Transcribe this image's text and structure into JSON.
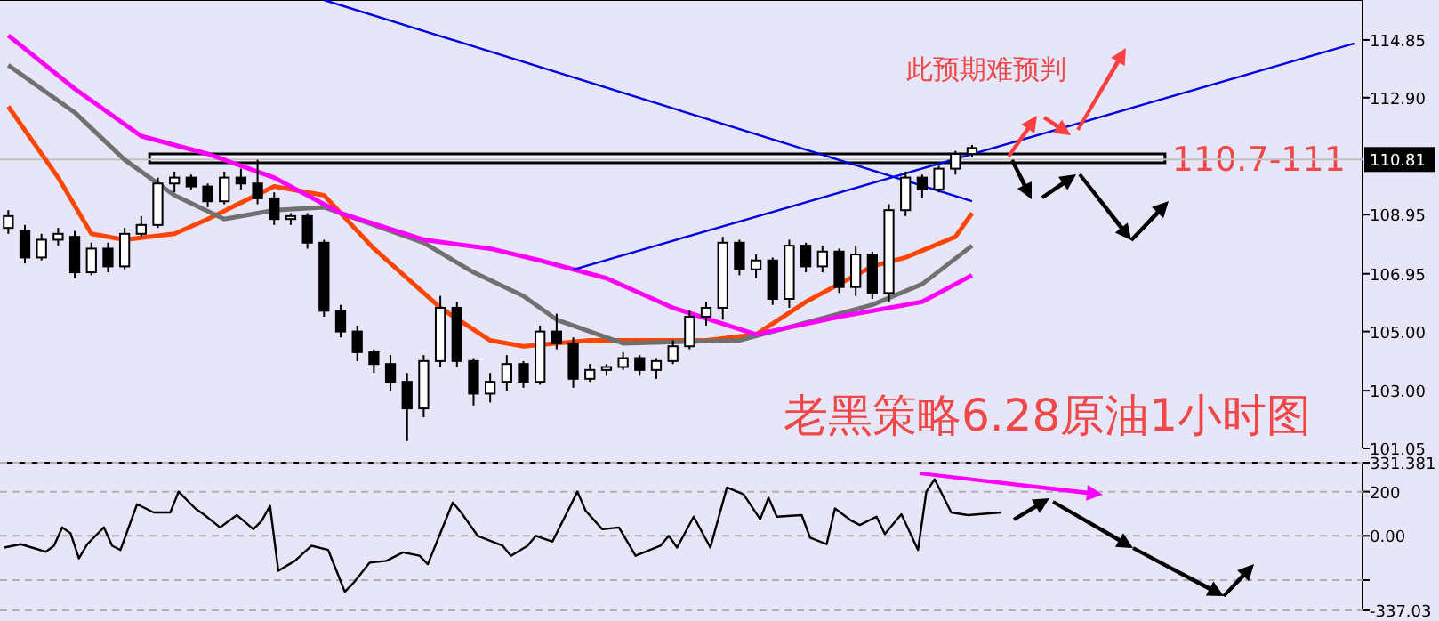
{
  "chart_data": [
    {
      "type": "candlestick",
      "tick_labels": "y",
      "grid": false,
      "categories": [
        null,
        null,
        null,
        null,
        null,
        null,
        null,
        null,
        null,
        null,
        null,
        null,
        null,
        null,
        null,
        null,
        null,
        null,
        null,
        null,
        null,
        null,
        null,
        null,
        null,
        null,
        null,
        null,
        null,
        null,
        null,
        null,
        null,
        null,
        null,
        null,
        null,
        null,
        null,
        null,
        null,
        null,
        null,
        null,
        null,
        null,
        null,
        null,
        null,
        null,
        null,
        null,
        null,
        null,
        null,
        null,
        null,
        null,
        null,
        null,
        null,
        null,
        null,
        null,
        null,
        null,
        null,
        null,
        null,
        null,
        null,
        null,
        null,
        null,
        null,
        null,
        null,
        null,
        null,
        null,
        null,
        null
      ],
      "ohlc": [
        [
          108.5,
          109.1,
          108.3,
          108.9
        ],
        [
          108.4,
          108.6,
          107.3,
          107.5
        ],
        [
          107.5,
          108.3,
          107.4,
          108.1
        ],
        [
          108.1,
          108.5,
          107.9,
          108.3
        ],
        [
          108.2,
          108.4,
          106.8,
          107.0
        ],
        [
          107.0,
          108.0,
          106.9,
          107.8
        ],
        [
          107.8,
          108.0,
          107.0,
          107.2
        ],
        [
          107.2,
          108.5,
          107.1,
          108.3
        ],
        [
          108.3,
          108.9,
          108.2,
          108.6
        ],
        [
          108.6,
          110.2,
          108.5,
          110.0
        ],
        [
          110.0,
          110.4,
          109.7,
          110.2
        ],
        [
          110.2,
          110.3,
          109.8,
          109.9
        ],
        [
          109.9,
          110.0,
          109.2,
          109.4
        ],
        [
          109.4,
          110.4,
          109.3,
          110.2
        ],
        [
          110.2,
          110.5,
          109.8,
          110.0
        ],
        [
          110.0,
          110.8,
          109.3,
          109.5
        ],
        [
          109.5,
          109.7,
          108.6,
          108.8
        ],
        [
          108.8,
          109.0,
          108.6,
          108.9
        ],
        [
          108.9,
          109.0,
          107.8,
          108.0
        ],
        [
          108.0,
          108.1,
          105.5,
          105.7
        ],
        [
          105.7,
          105.9,
          104.8,
          105.0
        ],
        [
          105.0,
          105.2,
          104.0,
          104.3
        ],
        [
          104.3,
          104.4,
          103.6,
          103.9
        ],
        [
          103.9,
          104.2,
          103.0,
          103.3
        ],
        [
          103.3,
          103.6,
          101.3,
          102.4
        ],
        [
          102.4,
          104.2,
          102.1,
          104.0
        ],
        [
          104.0,
          106.2,
          103.8,
          105.8
        ],
        [
          105.8,
          106.0,
          103.8,
          104.0
        ],
        [
          104.0,
          104.1,
          102.5,
          102.9
        ],
        [
          102.9,
          103.6,
          102.6,
          103.3
        ],
        [
          103.3,
          104.2,
          103.0,
          103.9
        ],
        [
          103.9,
          104.0,
          103.1,
          103.3
        ],
        [
          103.3,
          105.2,
          103.2,
          105.0
        ],
        [
          105.0,
          105.6,
          104.4,
          104.6
        ],
        [
          104.6,
          104.8,
          103.1,
          103.4
        ],
        [
          103.4,
          103.9,
          103.3,
          103.7
        ],
        [
          103.7,
          103.9,
          103.5,
          103.8
        ],
        [
          103.8,
          104.3,
          103.7,
          104.1
        ],
        [
          104.1,
          104.2,
          103.5,
          103.7
        ],
        [
          103.7,
          104.1,
          103.4,
          104.0
        ],
        [
          104.0,
          104.7,
          103.9,
          104.5
        ],
        [
          104.5,
          105.7,
          104.4,
          105.5
        ],
        [
          105.5,
          106.0,
          105.2,
          105.8
        ],
        [
          105.8,
          108.2,
          105.4,
          108.0
        ],
        [
          108.0,
          108.1,
          106.9,
          107.1
        ],
        [
          107.1,
          107.6,
          106.8,
          107.4
        ],
        [
          107.4,
          107.5,
          105.9,
          106.1
        ],
        [
          106.1,
          108.1,
          105.8,
          107.9
        ],
        [
          107.9,
          108.0,
          107.0,
          107.2
        ],
        [
          107.2,
          107.9,
          107.0,
          107.7
        ],
        [
          107.7,
          107.8,
          106.3,
          106.5
        ],
        [
          106.5,
          107.9,
          106.2,
          107.6
        ],
        [
          107.6,
          107.7,
          106.1,
          106.3
        ],
        [
          106.3,
          109.3,
          106.0,
          109.1
        ],
        [
          109.1,
          110.4,
          108.9,
          110.2
        ],
        [
          110.2,
          110.3,
          109.5,
          109.8
        ],
        [
          109.8,
          110.6,
          109.7,
          110.5
        ],
        [
          110.5,
          111.1,
          110.3,
          111.0
        ],
        [
          111.0,
          111.3,
          110.9,
          111.2
        ],
        null,
        null,
        null,
        null,
        null,
        null,
        null,
        null,
        null,
        null,
        null,
        null,
        null,
        null,
        null,
        null,
        null,
        null,
        null,
        null,
        null,
        null,
        null
      ],
      "series": [
        {
          "type": "line",
          "color": "#ff4500",
          "values": [
            112.6,
            null,
            null,
            110.2,
            null,
            108.3,
            null,
            108.1,
            null,
            null,
            108.3,
            null,
            108.8,
            null,
            null,
            null,
            109.9,
            null,
            null,
            109.6,
            null,
            null,
            107.8,
            null,
            null,
            null,
            105.8,
            null,
            null,
            104.7,
            null,
            104.5,
            null,
            null,
            null,
            104.7,
            null,
            null,
            null,
            null,
            null,
            null,
            104.7,
            null,
            null,
            104.9,
            null,
            null,
            106.0,
            null,
            null,
            null,
            107.2,
            null,
            107.5,
            null,
            null,
            108.2,
            109.0,
            null,
            null,
            null,
            null,
            null,
            null,
            null,
            null,
            null,
            null,
            null,
            null,
            null,
            null,
            null,
            null,
            null,
            null,
            null,
            null,
            null,
            null,
            null
          ]
        },
        {
          "type": "line",
          "color": "#707070",
          "values": [
            114.0,
            null,
            null,
            null,
            112.4,
            null,
            null,
            110.8,
            null,
            null,
            109.6,
            null,
            null,
            108.8,
            null,
            null,
            109.1,
            null,
            null,
            109.2,
            null,
            null,
            108.6,
            null,
            null,
            108.0,
            null,
            null,
            107.0,
            null,
            null,
            106.2,
            null,
            105.4,
            null,
            null,
            null,
            104.6,
            null,
            null,
            null,
            null,
            null,
            null,
            104.7,
            null,
            null,
            null,
            105.3,
            null,
            null,
            null,
            105.9,
            null,
            null,
            106.6,
            null,
            null,
            107.9,
            null,
            null,
            null,
            null,
            null,
            null,
            null,
            null,
            null,
            null,
            null,
            null,
            null,
            null,
            null,
            null,
            null,
            null,
            null,
            null,
            null,
            null,
            null
          ]
        },
        {
          "type": "line",
          "color": "#ff00ff",
          "values": [
            115.0,
            null,
            null,
            null,
            113.2,
            null,
            null,
            null,
            111.6,
            null,
            null,
            null,
            111.0,
            null,
            null,
            null,
            110.2,
            null,
            null,
            null,
            109.0,
            null,
            null,
            null,
            null,
            108.1,
            null,
            null,
            null,
            107.8,
            null,
            null,
            107.4,
            null,
            null,
            null,
            106.8,
            null,
            null,
            null,
            105.8,
            null,
            null,
            null,
            null,
            104.9,
            null,
            null,
            null,
            null,
            105.5,
            null,
            null,
            null,
            null,
            106.0,
            null,
            null,
            106.9,
            null,
            null,
            null,
            null,
            null,
            null,
            null,
            null,
            null,
            null,
            null,
            null,
            null,
            null,
            null,
            null,
            null,
            null,
            null,
            null,
            null,
            null,
            null
          ]
        },
        {
          "type": "line",
          "color": "#0000e0",
          "values": [
            null,
            null,
            null,
            null,
            null,
            null,
            null,
            null,
            null,
            null,
            null,
            null,
            null,
            null,
            null,
            null,
            null,
            null,
            null,
            116.2,
            null,
            null,
            null,
            null,
            null,
            null,
            null,
            null,
            null,
            null,
            null,
            null,
            null,
            null,
            null,
            null,
            null,
            null,
            null,
            null,
            null,
            null,
            null,
            null,
            null,
            null,
            null,
            null,
            null,
            null,
            null,
            null,
            null,
            null,
            null,
            null,
            null,
            null,
            109.4,
            null,
            null,
            null,
            null,
            null,
            null,
            null,
            null,
            null,
            null,
            null,
            null,
            null,
            null,
            null,
            null,
            null,
            null,
            null,
            null,
            null,
            null,
            null
          ]
        },
        {
          "type": "line",
          "color": "#0000e0",
          "values": [
            null,
            null,
            null,
            null,
            null,
            null,
            null,
            null,
            null,
            null,
            null,
            null,
            null,
            null,
            null,
            null,
            null,
            null,
            null,
            null,
            null,
            null,
            null,
            null,
            null,
            null,
            null,
            null,
            null,
            null,
            null,
            null,
            null,
            null,
            107.09,
            null,
            null,
            null,
            null,
            null,
            null,
            null,
            null,
            null,
            null,
            null,
            null,
            null,
            null,
            null,
            null,
            null,
            null,
            null,
            null,
            null,
            null,
            null,
            null,
            null,
            null,
            null,
            null,
            null,
            null,
            null,
            null,
            null,
            null,
            null,
            null,
            null,
            null,
            null,
            null,
            null,
            null,
            null,
            null,
            null,
            null,
            114.73
          ]
        }
      ],
      "ylim": [
        101.05,
        116.2
      ],
      "yticks": [
        {
          "value": 114.85,
          "label": "114.85"
        },
        {
          "value": 112.9,
          "label": "112.90"
        },
        {
          "value": 108.95,
          "label": "108.95"
        },
        {
          "value": 106.95,
          "label": "106.95"
        },
        {
          "value": 105.0,
          "label": "105.00"
        },
        {
          "value": 103.0,
          "label": "103.00"
        },
        {
          "value": 101.05,
          "label": "101.05"
        }
      ],
      "ref_lines": [
        {
          "axis": "y",
          "value": 110.81,
          "label": "110.81",
          "color": "#c0c0c0"
        }
      ],
      "bands": [
        {
          "axis": "y",
          "from": 110.7,
          "to": 111,
          "label": "110.7-111",
          "color": "#f4f4fc"
        }
      ],
      "annotations": [
        "此预期难预判",
        "老黑策略6.28原油1小时图"
      ]
    },
    {
      "type": "line",
      "tick_labels": "y",
      "grid": "y",
      "categories": [
        null,
        null,
        null,
        null,
        null,
        null,
        null,
        null,
        null,
        null,
        null,
        null,
        null,
        null,
        null,
        null,
        null,
        null,
        null,
        null,
        null,
        null,
        null,
        null,
        null,
        null,
        null,
        null,
        null,
        null,
        null,
        null,
        null,
        null,
        null,
        null,
        null,
        null,
        null,
        null,
        null,
        null,
        null,
        null,
        null,
        null,
        null,
        null,
        null,
        null,
        null,
        null,
        null,
        null,
        null,
        null,
        null,
        null,
        null,
        null,
        null,
        null,
        null,
        null,
        null,
        null,
        null,
        null,
        null,
        null,
        null,
        null,
        null,
        null,
        null,
        null,
        null,
        null,
        null,
        null,
        null,
        null,
        null,
        null,
        null,
        null,
        null,
        null,
        null,
        null,
        null,
        null,
        null,
        null,
        null,
        null,
        null,
        null,
        null,
        null,
        null,
        null,
        null,
        null,
        null,
        null,
        null,
        null,
        null,
        null,
        null,
        null,
        null,
        null,
        null,
        null,
        null,
        null,
        null,
        null,
        null,
        null,
        null,
        null,
        null,
        null,
        null,
        null,
        null,
        null,
        null,
        null,
        null,
        null,
        null,
        null,
        null,
        null,
        null,
        null,
        null,
        null,
        null,
        null,
        null,
        null,
        null,
        null,
        null,
        null,
        null,
        null,
        null,
        null,
        null,
        null,
        null,
        null,
        null,
        null,
        null,
        null,
        null,
        null
      ],
      "series": [
        {
          "color": "#000000",
          "values": [
            -53,
            null,
            -38,
            null,
            null,
            -72,
            -45,
            38,
            11,
            -102,
            -38,
            null,
            38,
            -45,
            -64,
            null,
            143,
            null,
            106,
            null,
            106,
            200,
            null,
            124,
            98,
            null,
            38,
            null,
            94,
            null,
            30,
            68,
            136,
            -158,
            null,
            -113,
            null,
            -45,
            null,
            -64,
            -158,
            -253,
            -215,
            null,
            -121,
            null,
            -113,
            null,
            -75,
            null,
            -90,
            -128,
            null,
            null,
            151,
            106,
            null,
            0,
            null,
            null,
            -45,
            -90,
            null,
            -45,
            0,
            null,
            -26,
            null,
            null,
            200,
            113,
            null,
            30,
            null,
            38,
            null,
            -90,
            null,
            null,
            -45,
            0,
            -53,
            null,
            87,
            null,
            -53,
            null,
            219,
            null,
            188,
            null,
            75,
            173,
            87,
            null,
            null,
            94,
            -8,
            null,
            -38,
            124,
            null,
            68,
            49,
            null,
            87,
            8,
            null,
            98,
            null,
            -64,
            200,
            256,
            null,
            106,
            null,
            94,
            null,
            null,
            null,
            106,
            null,
            null,
            null,
            null,
            null,
            null,
            null,
            null,
            null,
            null,
            null,
            null,
            null,
            null,
            null,
            null,
            null,
            null,
            null,
            null,
            null,
            null,
            null,
            null,
            null,
            null,
            null,
            null,
            null,
            null,
            null,
            null,
            null,
            null,
            null,
            null,
            null,
            null,
            null,
            null,
            null,
            null,
            null
          ]
        }
      ],
      "ylim": [
        -337.03,
        331.381
      ],
      "yticks": [
        {
          "value": 331.381,
          "label": "331.381"
        },
        {
          "value": 200,
          "label": "200"
        },
        {
          "value": 0,
          "label": "0.00"
        },
        {
          "value": -200,
          "label": null
        },
        {
          "value": -337.03,
          "label": "-337.03"
        }
      ]
    }
  ]
}
